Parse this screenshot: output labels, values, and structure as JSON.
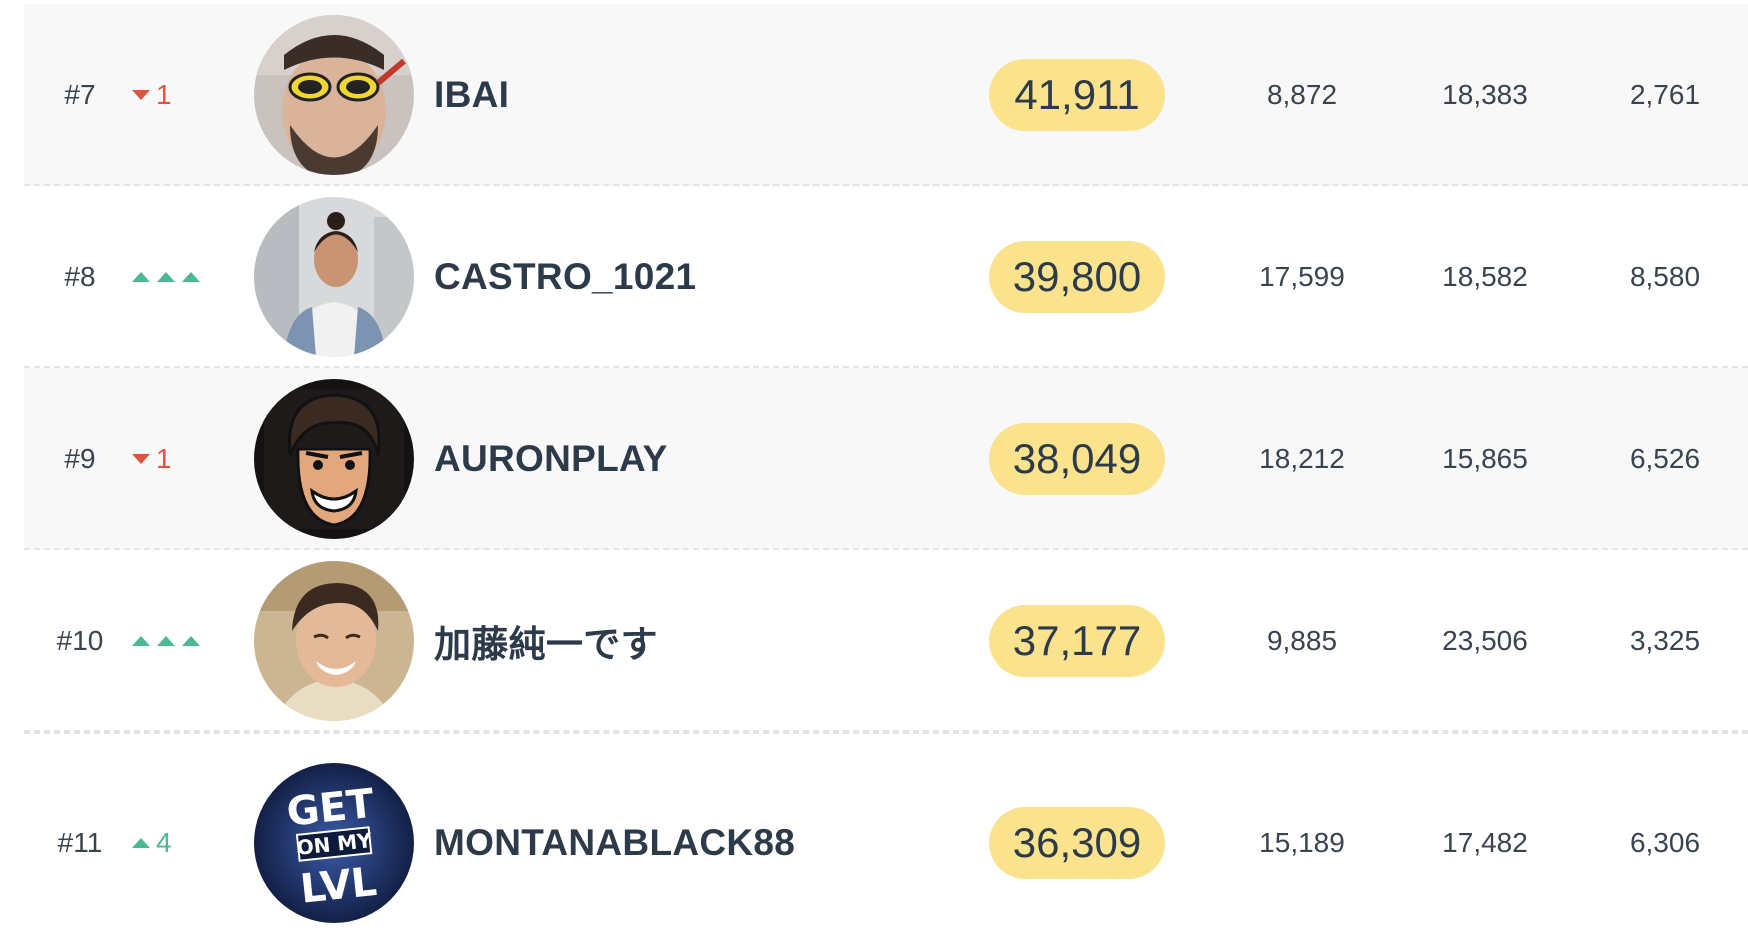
{
  "colors": {
    "score_badge": "#fbe38e",
    "down": "#e0533e",
    "up": "#4cb894",
    "alt_row": "#f8f8f8"
  },
  "rows": [
    {
      "rank": "#7",
      "change_type": "down",
      "change_value": "1",
      "name": "IBAI",
      "score": "41,911",
      "col1": "8,872",
      "col2": "18,383",
      "col3": "2,761",
      "avatar": "avatar-ibai"
    },
    {
      "rank": "#8",
      "change_type": "new",
      "change_value": "",
      "name": "CASTRO_1021",
      "score": "39,800",
      "col1": "17,599",
      "col2": "18,582",
      "col3": "8,580",
      "avatar": "avatar-castro"
    },
    {
      "rank": "#9",
      "change_type": "down",
      "change_value": "1",
      "name": "AURONPLAY",
      "score": "38,049",
      "col1": "18,212",
      "col2": "15,865",
      "col3": "6,526",
      "avatar": "avatar-auronplay"
    },
    {
      "rank": "#10",
      "change_type": "new",
      "change_value": "",
      "name": "加藤純一です",
      "score": "37,177",
      "col1": "9,885",
      "col2": "23,506",
      "col3": "3,325",
      "avatar": "avatar-kato"
    },
    {
      "rank": "#11",
      "change_type": "up",
      "change_value": "4",
      "name": "MONTANABLACK88",
      "score": "36,309",
      "col1": "15,189",
      "col2": "17,482",
      "col3": "6,306",
      "avatar": "avatar-montana"
    }
  ]
}
